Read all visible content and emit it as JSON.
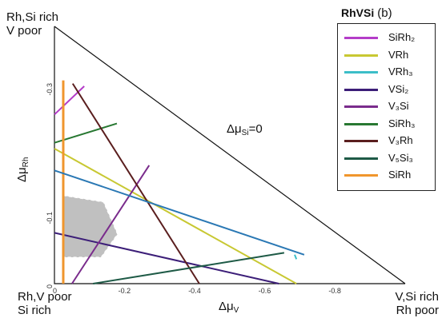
{
  "corner_labels": {
    "top_left": [
      "Rh,Si rich",
      "V poor"
    ],
    "bottom_left": [
      "Rh,V poor",
      "Si rich"
    ],
    "bottom_right": [
      "V,Si rich",
      "Rh poor"
    ]
  },
  "legend": {
    "title": "RhVSi",
    "panel_tag": "(b)",
    "items": [
      {
        "label": "SiRh₂",
        "color": "#b43cc8"
      },
      {
        "label": "VRh",
        "color": "#c8c832"
      },
      {
        "label": "VRh₃",
        "color": "#3cbec8"
      },
      {
        "label": "VSi₂",
        "color": "#3c1e78"
      },
      {
        "label": "V₃Si",
        "color": "#7a2c8c"
      },
      {
        "label": "SiRh₃",
        "color": "#287832"
      },
      {
        "label": "V₃Rh",
        "color": "#5a1e1e"
      },
      {
        "label": "V₅Si₃",
        "color": "#1e5a46"
      },
      {
        "label": "SiRh",
        "color": "#f0962d"
      }
    ]
  },
  "chart_data": {
    "type": "line",
    "xlabel": "Δμ_V",
    "ylabel": "Δμ_Rh",
    "x_ticks": [
      "0",
      "-0.2",
      "-0.4",
      "-0.6",
      "-0.8"
    ],
    "y_ticks": [
      "0",
      "-0.1",
      "-0.3"
    ],
    "xlim": [
      0,
      -1.0
    ],
    "ylim": [
      0,
      -0.4
    ],
    "boundary_label": "Δμ_Si=0",
    "stable_region_color": "#c0c0c0",
    "series": [
      {
        "name": "SiRh₂",
        "color": "#b43cc8",
        "points": [
          [
            0.0,
            -0.263
          ],
          [
            -0.085,
            -0.307
          ]
        ]
      },
      {
        "name": "VRh",
        "color": "#c8c832",
        "points": [
          [
            0.0,
            -0.21
          ],
          [
            -0.69,
            0.0
          ]
        ]
      },
      {
        "name": "VRh₃",
        "color": "#3cbec8",
        "points": [
          [
            -0.685,
            -0.045
          ],
          [
            -0.69,
            -0.038
          ]
        ]
      },
      {
        "name": "VSi₂",
        "color": "#3c1e78",
        "points": [
          [
            0.0,
            -0.079
          ],
          [
            -0.64,
            0.0
          ]
        ]
      },
      {
        "name": "V₃Si",
        "color": "#7a2c8c",
        "points": [
          [
            -0.05,
            0.0
          ],
          [
            -0.27,
            -0.184
          ]
        ]
      },
      {
        "name": "SiRh₃",
        "color": "#287832",
        "points": [
          [
            0.0,
            -0.219
          ],
          [
            -0.178,
            -0.249
          ]
        ]
      },
      {
        "name": "V₃Rh",
        "color": "#5a1e1e",
        "points": [
          [
            -0.052,
            -0.311
          ],
          [
            -0.413,
            0.0
          ]
        ]
      },
      {
        "name": "V₅Si₃",
        "color": "#1e5a46",
        "points": [
          [
            -0.11,
            0.0
          ],
          [
            -0.655,
            -0.048
          ]
        ]
      },
      {
        "name": "SiRh",
        "color": "#f0962d",
        "points": [
          [
            -0.025,
            0.0
          ],
          [
            -0.025,
            -0.316
          ]
        ]
      },
      {
        "name": "",
        "color": "#2a78b4",
        "points": [
          [
            0.0,
            -0.176
          ],
          [
            -0.712,
            -0.045
          ]
        ]
      }
    ],
    "stable_region": [
      [
        -0.025,
        -0.137
      ],
      [
        -0.14,
        -0.127
      ],
      [
        -0.18,
        -0.077
      ],
      [
        -0.133,
        -0.041
      ],
      [
        -0.025,
        -0.041
      ]
    ]
  }
}
